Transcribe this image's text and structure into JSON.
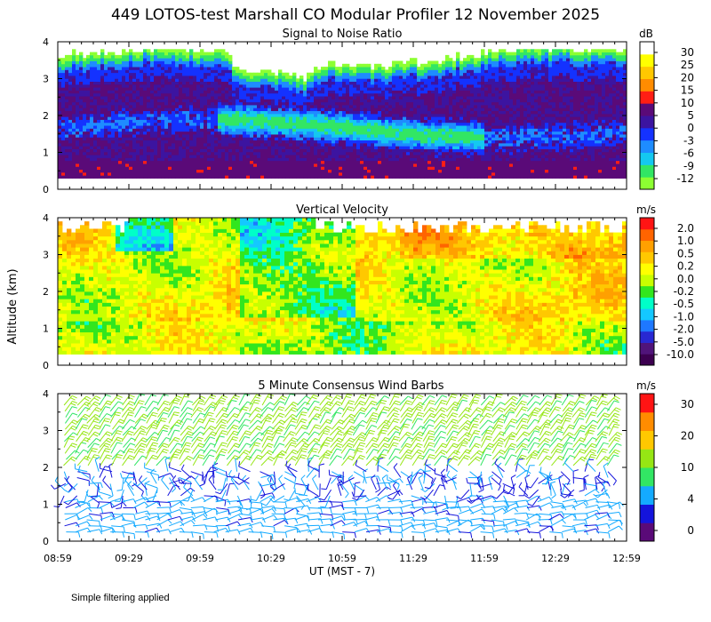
{
  "title": "449 LOTOS-test Marshall CO Modular Profiler 12 November 2025",
  "ylabel": "Altitude (km)",
  "xlabel": "UT  (MST - 7)",
  "x_ticks": [
    "08:59",
    "09:29",
    "09:59",
    "10:29",
    "10:59",
    "11:29",
    "11:59",
    "12:29",
    "12:59"
  ],
  "y_ticks": [
    "0",
    "1",
    "2",
    "3",
    "4"
  ],
  "footnote": "Simple filtering applied",
  "colors": {
    "snr": [
      "#8cff32",
      "#32e664",
      "#14c8f0",
      "#1e8cff",
      "#1432ff",
      "#3c14a0",
      "#5a0a78",
      "#ff1e14",
      "#ff8c00",
      "#ffc800",
      "#ffff00",
      "#ffffff"
    ],
    "vel": [
      "#3c0050",
      "#50147a",
      "#2828d2",
      "#1e78ff",
      "#14c8ff",
      "#00ffc8",
      "#32e61e",
      "#c8ff00",
      "#ffff00",
      "#ffc800",
      "#ffa000",
      "#ff6400",
      "#ff1414"
    ],
    "wind": [
      "#5a0a78",
      "#1414dc",
      "#14aaff",
      "#32e664",
      "#96e614",
      "#ffc800",
      "#ff8c00",
      "#ff1414"
    ]
  },
  "chart_data": [
    {
      "type": "heatmap",
      "title": "Signal to Noise Ratio",
      "units": "dB",
      "x_range": [
        "08:59",
        "12:59"
      ],
      "ylim": [
        0,
        4
      ],
      "colorbar_labels": [
        "30",
        "25",
        "20",
        "15",
        "10",
        "5",
        "0",
        "-3",
        "-6",
        "-9",
        "-12"
      ]
    },
    {
      "type": "heatmap",
      "title": "Vertical Velocity",
      "units": "m/s",
      "x_range": [
        "08:59",
        "12:59"
      ],
      "ylim": [
        0,
        4
      ],
      "colorbar_labels": [
        "2.0",
        "1.0",
        "0.5",
        "0.2",
        "0.0",
        "-0.2",
        "-0.5",
        "-1.0",
        "-2.0",
        "-5.0",
        "-10.0"
      ]
    },
    {
      "type": "scatter",
      "title": "5 Minute Consensus Wind Barbs",
      "units": "m/s",
      "x_range": [
        "08:59",
        "12:59"
      ],
      "ylim": [
        0,
        4
      ],
      "colorbar_labels": [
        "30",
        "20",
        "10",
        "4",
        "0"
      ]
    }
  ]
}
